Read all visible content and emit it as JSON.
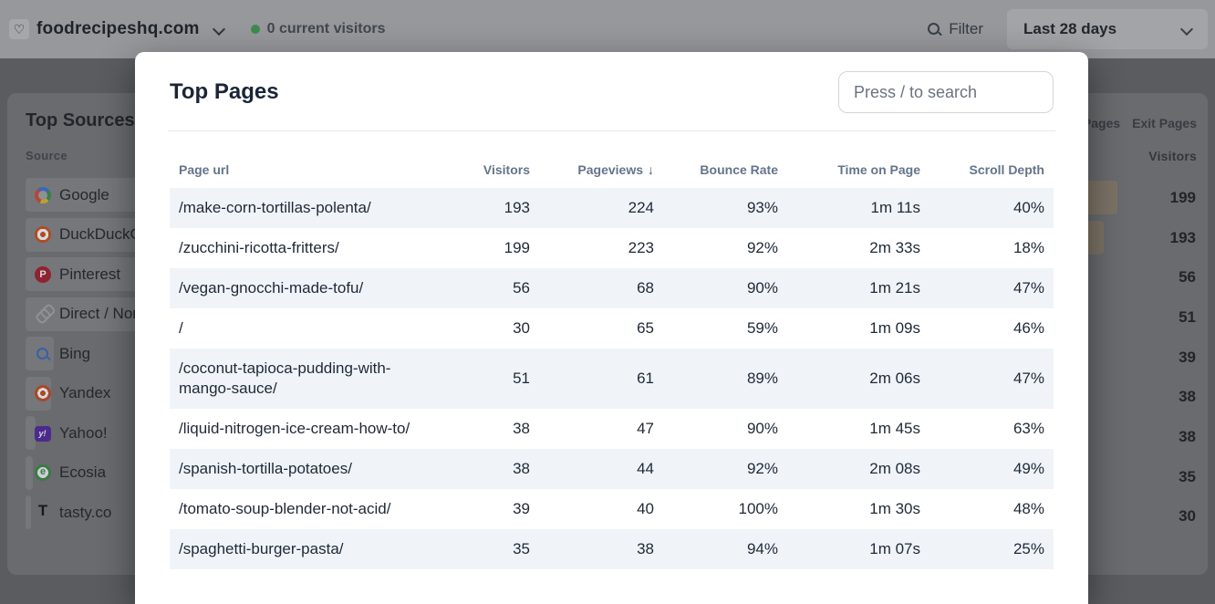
{
  "colors": {
    "live_indicator": "#3f8a4f",
    "row_stripe": "#f0f4f8",
    "modal_bg": "#ffffff"
  },
  "header": {
    "site_name": "foodrecipeshq.com",
    "live_status": "0 current visitors",
    "filter_label": "Filter",
    "date_range": "Last 28 days"
  },
  "background": {
    "sources_card": {
      "title": "Top Sources",
      "column_label": "Source",
      "items": [
        {
          "name": "Google",
          "icon": "google-favicon",
          "bar_ratio": 1.0
        },
        {
          "name": "DuckDuckGo",
          "icon": "duckduckgo-favicon",
          "bar_ratio": 0.97
        },
        {
          "name": "Pinterest",
          "icon": "pinterest-favicon",
          "bar_ratio": 0.45
        },
        {
          "name": "Direct / None",
          "icon": "direct-link",
          "bar_ratio": 0.38
        },
        {
          "name": "Bing",
          "icon": "bing-favicon",
          "bar_ratio": 0.055
        },
        {
          "name": "Yandex",
          "icon": "yandex-favicon",
          "bar_ratio": 0.05
        },
        {
          "name": "Yahoo!",
          "icon": "yahoo-favicon",
          "bar_ratio": 0.02
        },
        {
          "name": "Ecosia",
          "icon": "ecosia-favicon",
          "bar_ratio": 0.015
        },
        {
          "name": "tasty.co",
          "icon": "tasty-favicon",
          "bar_ratio": 0.01
        }
      ]
    },
    "pages_card": {
      "tabs": [
        "Pages",
        "Exit Pages"
      ],
      "visitors_label": "Visitors",
      "visitors": [
        199,
        193,
        56,
        51,
        39,
        38,
        38,
        35,
        30
      ],
      "max_visitors": 199
    }
  },
  "modal": {
    "title": "Top Pages",
    "search_placeholder": "Press / to search",
    "columns": [
      "Page url",
      "Visitors",
      "Pageviews",
      "Bounce Rate",
      "Time on Page",
      "Scroll Depth"
    ],
    "sort": {
      "column_index": 2,
      "direction_icon": "↓"
    },
    "rows": [
      {
        "url": "/make-corn-tortillas-polenta/",
        "visitors": "193",
        "pageviews": "224",
        "bounce_rate": "93%",
        "time_on_page": "1m 11s",
        "scroll_depth": "40%"
      },
      {
        "url": "/zucchini-ricotta-fritters/",
        "visitors": "199",
        "pageviews": "223",
        "bounce_rate": "92%",
        "time_on_page": "2m 33s",
        "scroll_depth": "18%"
      },
      {
        "url": "/vegan-gnocchi-made-tofu/",
        "visitors": "56",
        "pageviews": "68",
        "bounce_rate": "90%",
        "time_on_page": "1m 21s",
        "scroll_depth": "47%"
      },
      {
        "url": "/",
        "visitors": "30",
        "pageviews": "65",
        "bounce_rate": "59%",
        "time_on_page": "1m 09s",
        "scroll_depth": "46%"
      },
      {
        "url": "/coconut-tapioca-pudding-with-mango-sauce/",
        "visitors": "51",
        "pageviews": "61",
        "bounce_rate": "89%",
        "time_on_page": "2m 06s",
        "scroll_depth": "47%"
      },
      {
        "url": "/liquid-nitrogen-ice-cream-how-to/",
        "visitors": "38",
        "pageviews": "47",
        "bounce_rate": "90%",
        "time_on_page": "1m 45s",
        "scroll_depth": "63%"
      },
      {
        "url": "/spanish-tortilla-potatoes/",
        "visitors": "38",
        "pageviews": "44",
        "bounce_rate": "92%",
        "time_on_page": "2m 08s",
        "scroll_depth": "49%"
      },
      {
        "url": "/tomato-soup-blender-not-acid/",
        "visitors": "39",
        "pageviews": "40",
        "bounce_rate": "100%",
        "time_on_page": "1m 30s",
        "scroll_depth": "48%"
      },
      {
        "url": "/spaghetti-burger-pasta/",
        "visitors": "35",
        "pageviews": "38",
        "bounce_rate": "94%",
        "time_on_page": "1m 07s",
        "scroll_depth": "25%"
      }
    ]
  }
}
